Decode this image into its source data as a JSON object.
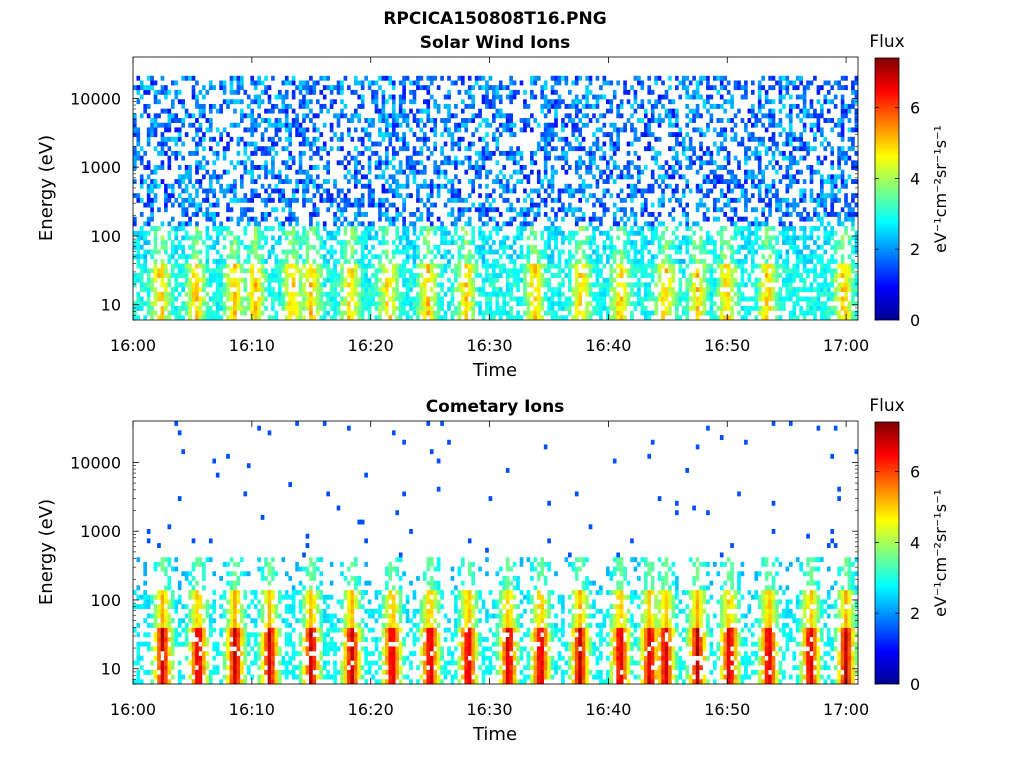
{
  "figure": {
    "title": "RPCICA150808T16.PNG"
  },
  "chart_data": [
    {
      "type": "heatmap",
      "title": "Solar Wind Ions",
      "xlabel": "Time",
      "ylabel": "Energy (eV)",
      "x_ticks": [
        "16:00",
        "16:10",
        "16:20",
        "16:30",
        "16:40",
        "16:50",
        "17:00"
      ],
      "x_range_minutes": [
        0,
        61
      ],
      "y_scale": "log",
      "y_ticks": [
        10,
        100,
        1000,
        10000
      ],
      "y_tick_labels": [
        "10",
        "100",
        "1000",
        "10000"
      ],
      "y_range": [
        6,
        40000
      ],
      "colorbar": {
        "title": "Flux",
        "label": "eV⁻¹cm⁻²sr⁻¹s⁻¹",
        "range": [
          0,
          7.4
        ],
        "ticks": [
          0,
          2,
          4,
          6
        ],
        "colormap": "jet"
      },
      "bursts_minutes": [
        2.3,
        5.3,
        8.5,
        10.3,
        13.4,
        15.0,
        18.3,
        21.5,
        24.8,
        28.0,
        33.8,
        37.7,
        41.0,
        44.8,
        47.5,
        50.0,
        53.4,
        59.8
      ],
      "peak_flux_summary": "Upper band (about 100 to 40000 eV) shows sparse low flux (1 to 2.5); low energies (about 6 to 200 eV) flux 2.5 to 5, maximum about 6.5 near 16:41"
    },
    {
      "type": "heatmap",
      "title": "Cometary Ions",
      "xlabel": "Time",
      "ylabel": "Energy (eV)",
      "x_ticks": [
        "16:00",
        "16:10",
        "16:20",
        "16:30",
        "16:40",
        "16:50",
        "17:00"
      ],
      "x_range_minutes": [
        0,
        61
      ],
      "y_scale": "log",
      "y_ticks": [
        10,
        100,
        1000,
        10000
      ],
      "y_tick_labels": [
        "10",
        "100",
        "1000",
        "10000"
      ],
      "y_range": [
        6,
        40000
      ],
      "colorbar": {
        "title": "Flux",
        "label": "eV⁻¹cm⁻²sr⁻¹s⁻¹",
        "range": [
          0,
          7.4
        ],
        "ticks": [
          0,
          2,
          4,
          6
        ],
        "colormap": "jet"
      },
      "bursts_minutes": [
        2.5,
        5.5,
        8.6,
        11.5,
        15.0,
        18.4,
        21.8,
        25.0,
        28.2,
        31.6,
        34.3,
        37.6,
        41.0,
        43.5,
        44.8,
        47.5,
        50.2,
        53.5,
        57.0,
        60.0
      ],
      "peak_flux_summary": "Sparse points at 300 to 30000 eV (flux about 1.5); strong bursts at 10 to 300 eV with peak flux about 7 between 20 and 40 eV"
    }
  ]
}
